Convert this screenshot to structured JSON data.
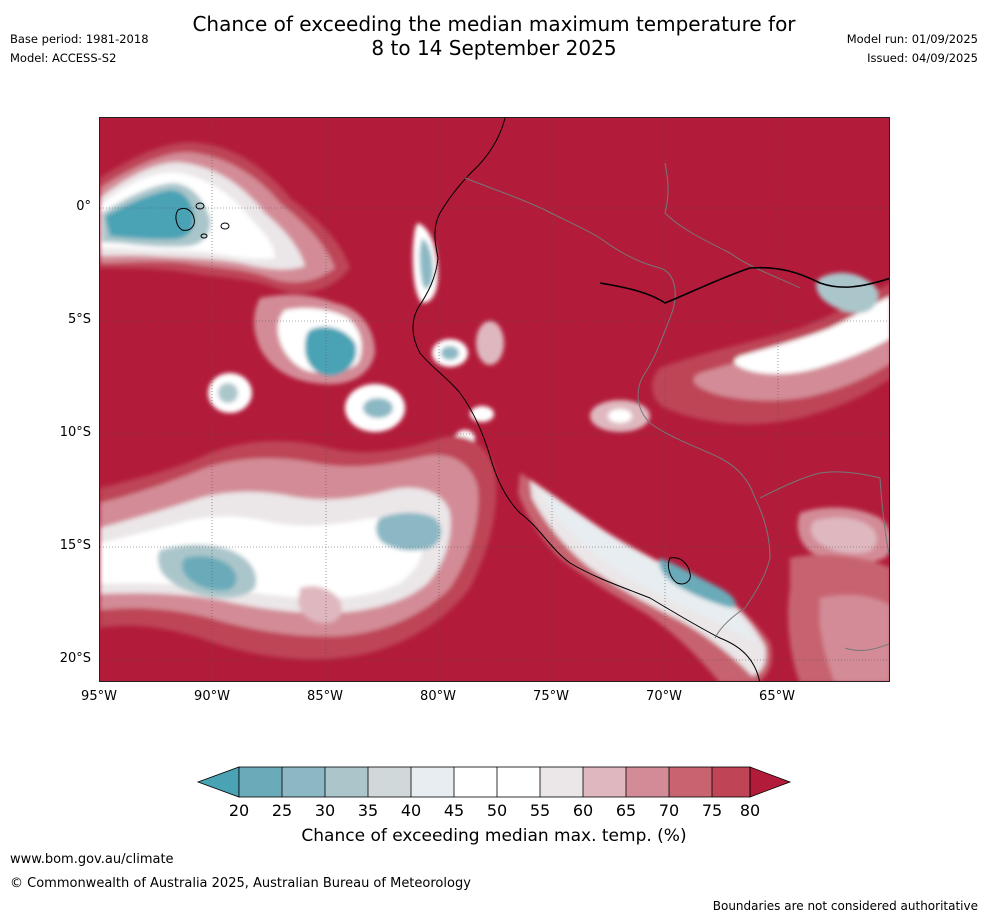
{
  "header": {
    "title_line1": "Chance of exceeding the median maximum temperature for",
    "title_line2": "8 to 14 September 2025",
    "base_period": "Base period: 1981-2018",
    "model": "Model: ACCESS-S2",
    "model_run": "Model run: 01/09/2025",
    "issued": "Issued: 04/09/2025"
  },
  "map": {
    "lat_labels": [
      "0°",
      "5°S",
      "10°S",
      "15°S",
      "20°S"
    ],
    "lon_labels": [
      "95°W",
      "90°W",
      "85°W",
      "80°W",
      "75°W",
      "70°W",
      "65°W"
    ],
    "colors": {
      "c_lt20": "#4aa3b5",
      "c_20_25": "#6aaab9",
      "c_25_30": "#8bb8c4",
      "c_30_35": "#abc6cb",
      "c_35_40": "#d0d8da",
      "c_40_45": "#e7edf0",
      "c_45_55": "#ffffff",
      "c_55_60": "#ebe6e8",
      "c_60_65": "#dfb8bf",
      "c_65_70": "#d38c97",
      "c_70_75": "#c76470",
      "c_75_80": "#be4456",
      "c_gt80": "#b21c3a"
    }
  },
  "colorbar": {
    "ticks": [
      "20",
      "25",
      "30",
      "35",
      "40",
      "45",
      "50",
      "55",
      "60",
      "65",
      "70",
      "75",
      "80"
    ],
    "label": "Chance of exceeding median max. temp. (%)"
  },
  "footer": {
    "url": "www.bom.gov.au/climate",
    "copyright": "© Commonwealth of Australia 2025, Australian Bureau of Meteorology",
    "disclaimer": "Boundaries are not considered authoritative"
  }
}
